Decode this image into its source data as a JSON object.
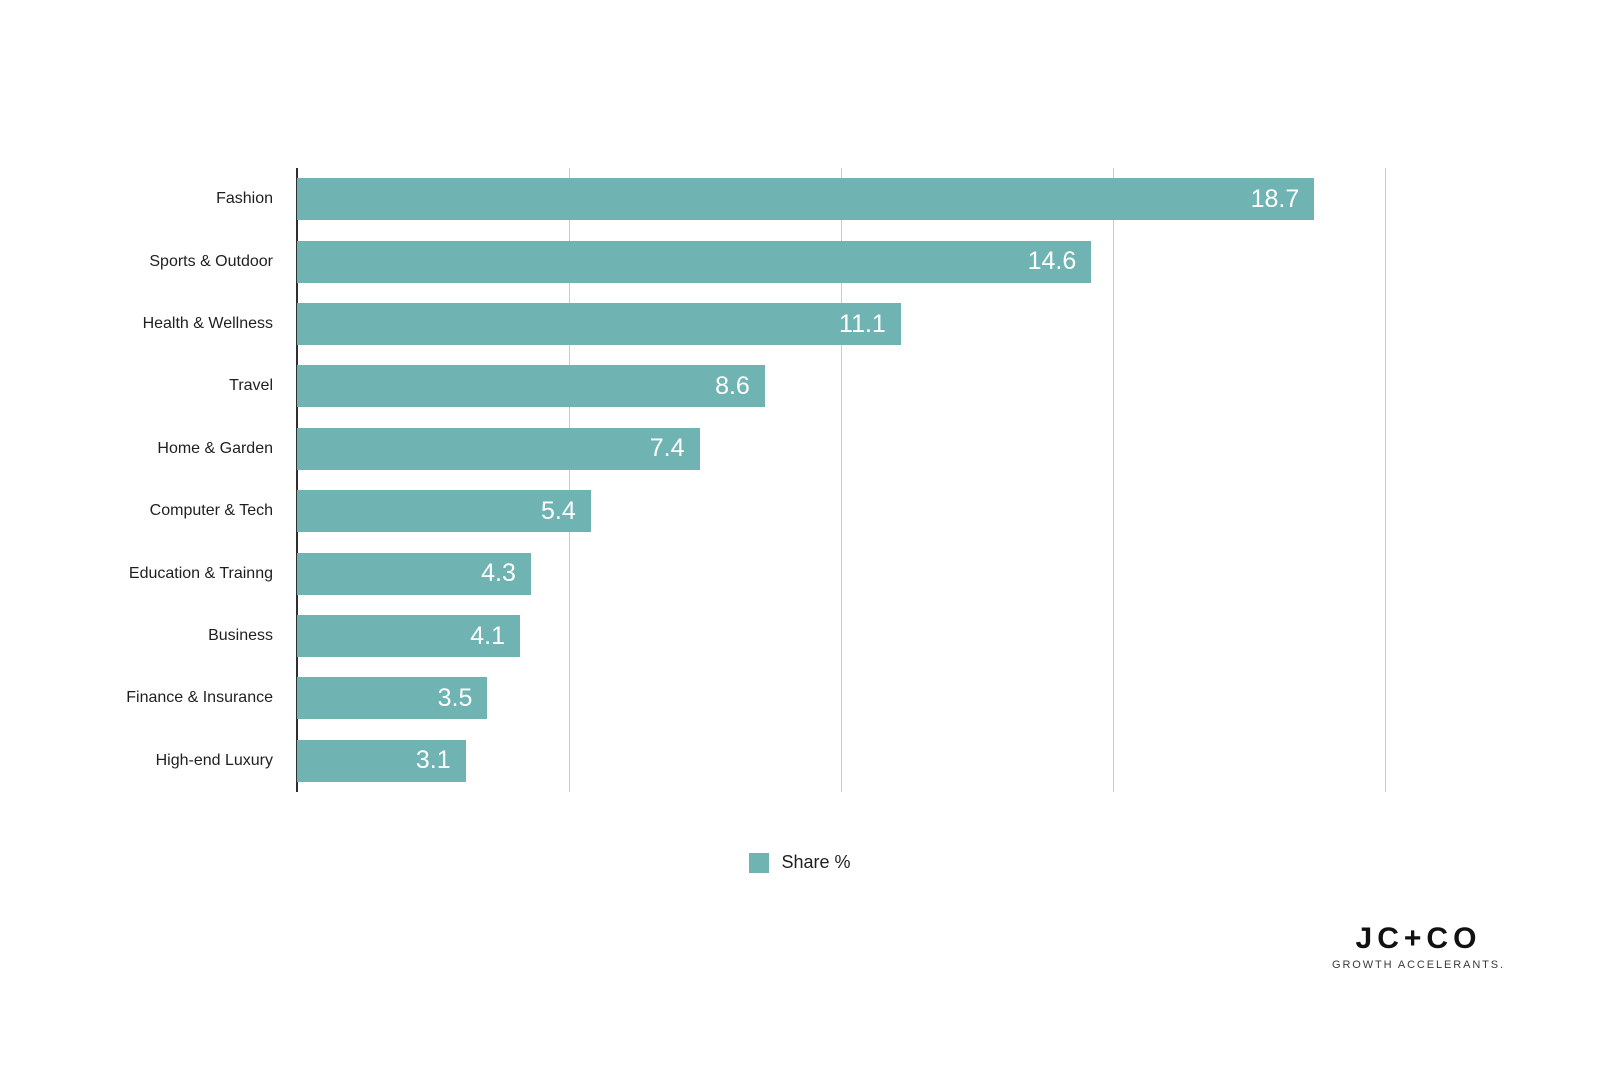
{
  "chart_data": {
    "type": "bar",
    "orientation": "horizontal",
    "title": "",
    "xlabel": "",
    "ylabel": "",
    "categories": [
      "Fashion",
      "Sports & Outdoor",
      "Health & Wellness",
      "Travel",
      "Home & Garden",
      "Computer & Tech",
      "Education & Trainng",
      "Business",
      "Finance & Insurance",
      "High-end Luxury"
    ],
    "values": [
      18.7,
      14.6,
      11.1,
      8.6,
      7.4,
      5.4,
      4.3,
      4.1,
      3.5,
      3.1
    ],
    "series_name": "Share %",
    "xlim": [
      0,
      20
    ],
    "gridlines": [
      0,
      5,
      10,
      15,
      20
    ],
    "grid_on": true,
    "legend_position": "bottom-center",
    "bar_color": "#6fb3b3",
    "value_label_color": "#ffffff",
    "legend": {
      "label": "Share %",
      "swatch_color": "#6fb3b3"
    }
  },
  "footer": {
    "logo_line1": "JC+CO",
    "logo_line2": "GROWTH ACCELERANTS."
  }
}
